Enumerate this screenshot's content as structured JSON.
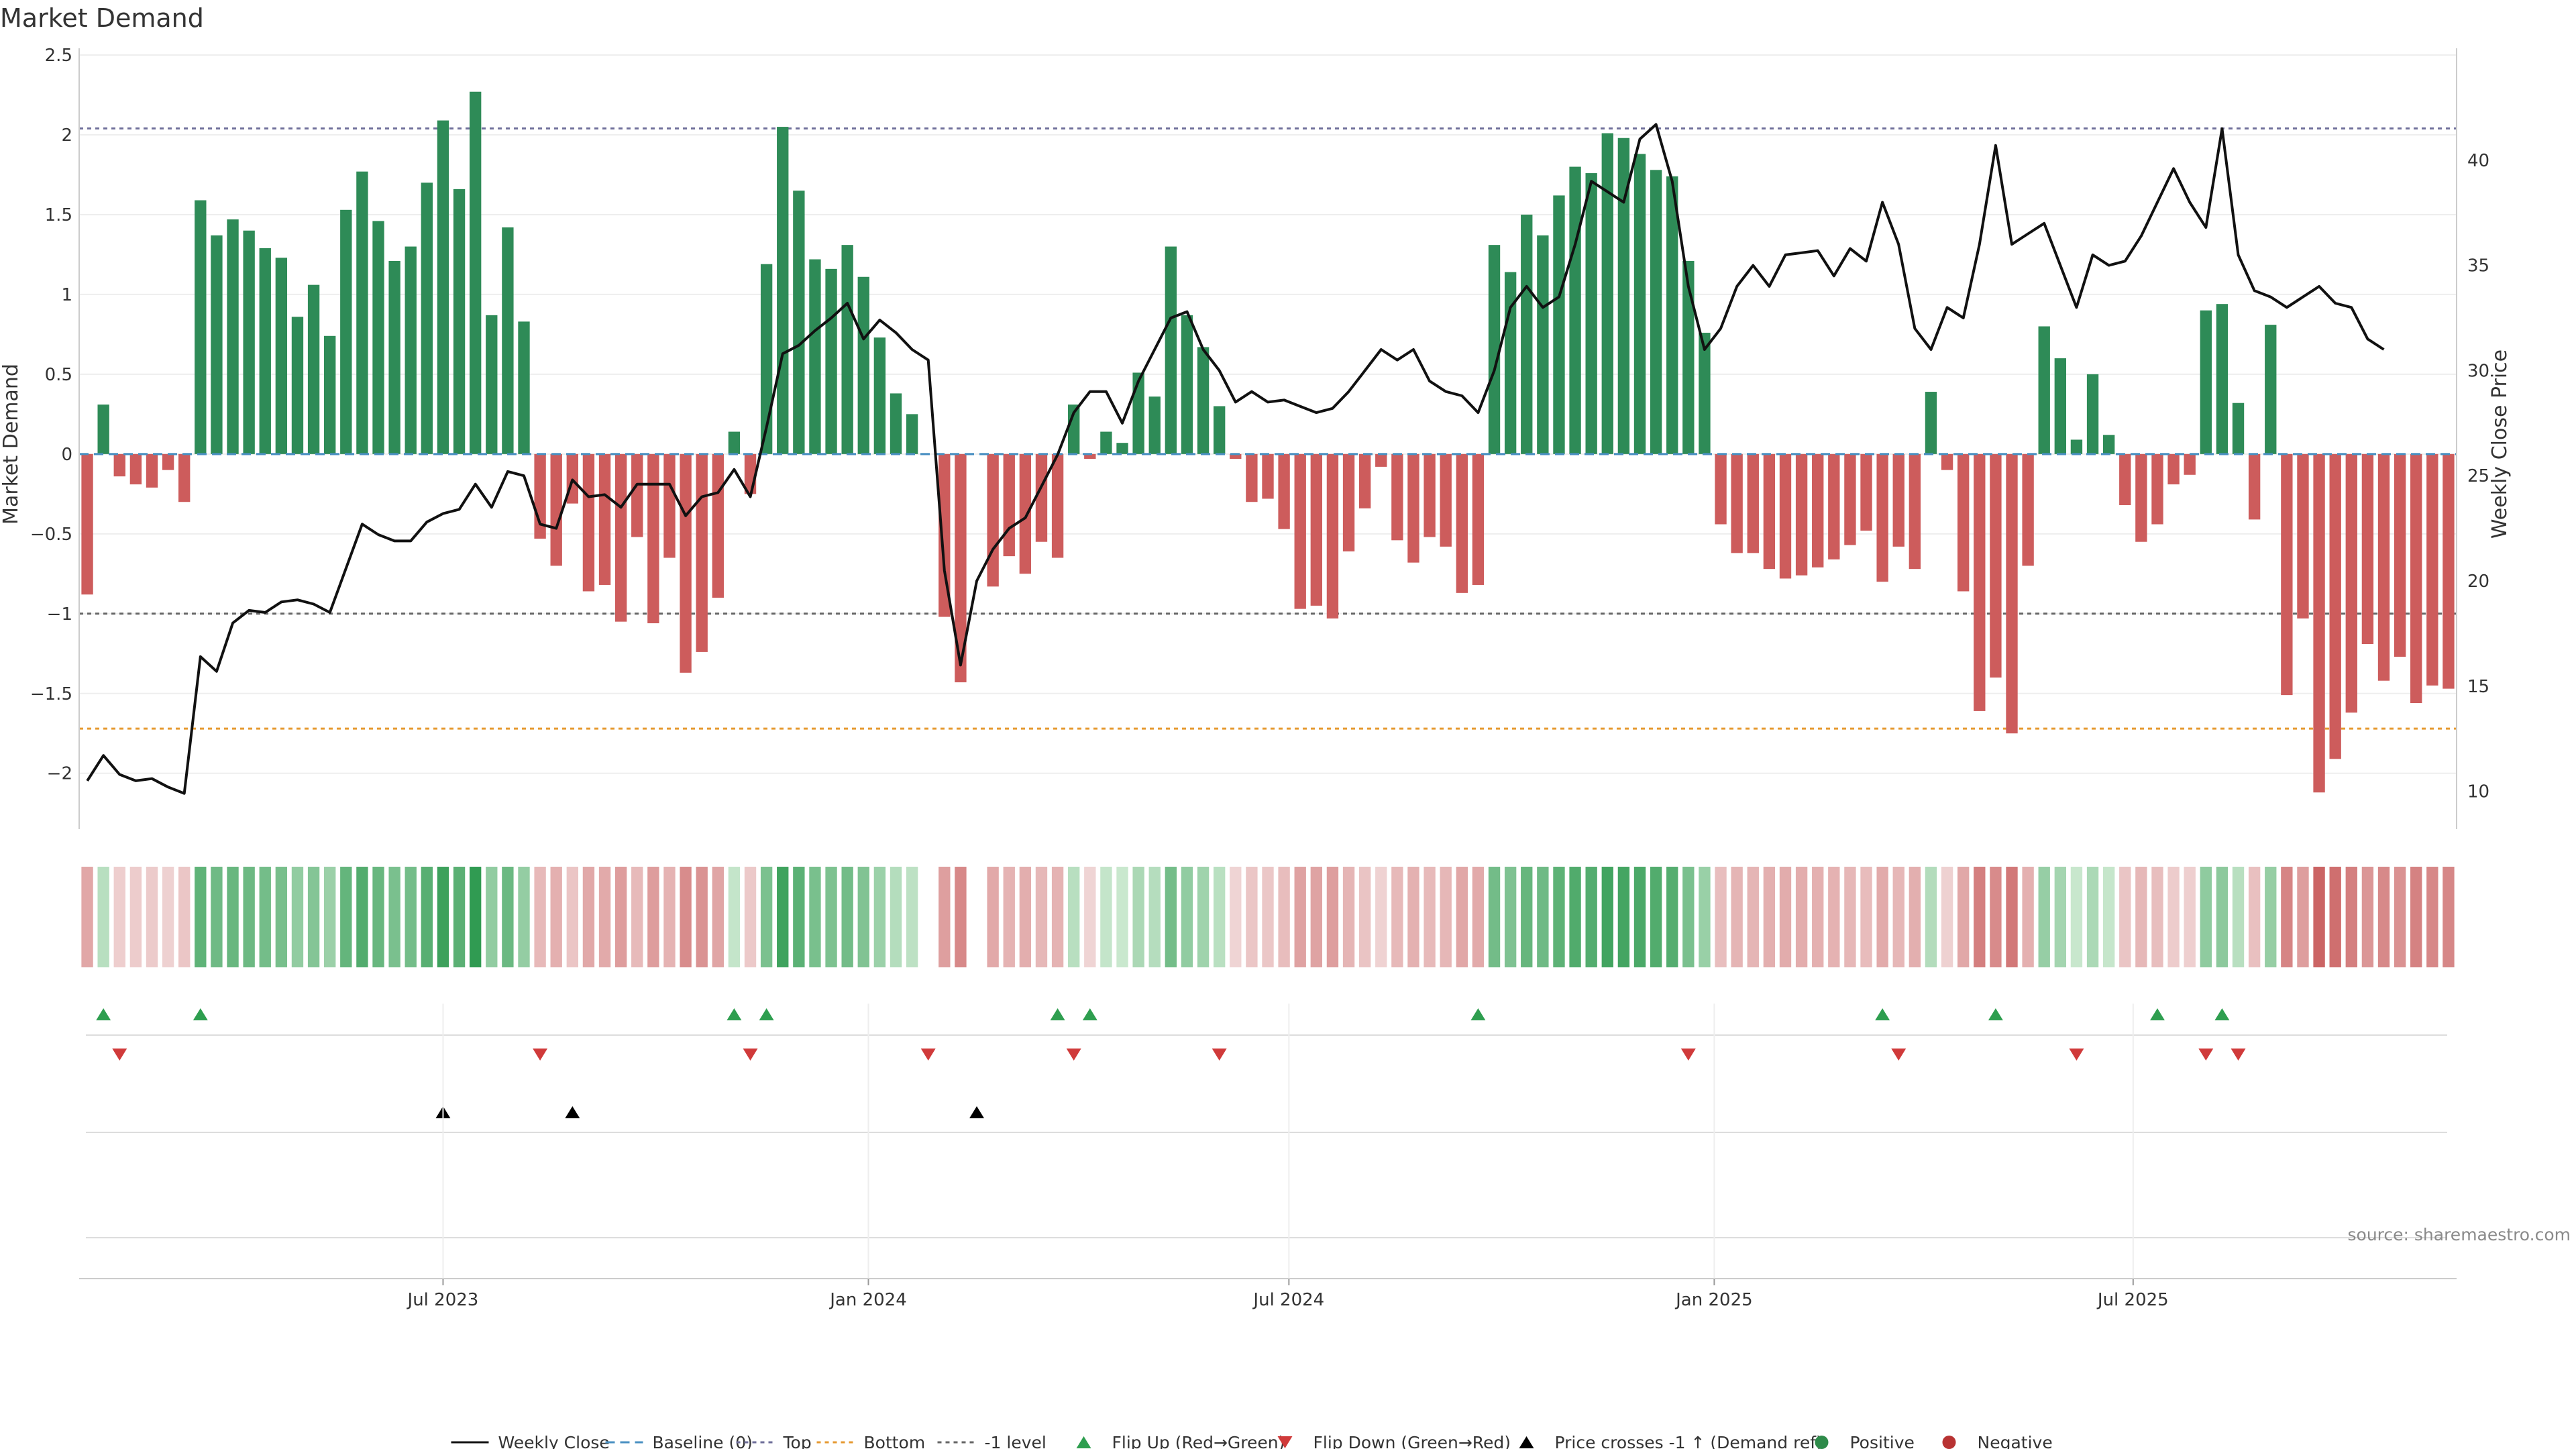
{
  "chart_data": {
    "type": "bar",
    "title": "Market Demand",
    "ylabel_left": "Market Demand",
    "ylabel_right": "Weekly Close Price",
    "ylim_left": [
      -2.35,
      2.5
    ],
    "ylim_right": [
      8.2,
      45.0
    ],
    "yticks_left": [
      2.5,
      2,
      1.5,
      1,
      0.5,
      0,
      -0.5,
      -1,
      -1.5,
      -2
    ],
    "ytick_labels_left": [
      "2.5",
      "2",
      "1.5",
      "1",
      "0.5",
      "0",
      "−0.5",
      "−1",
      "−1.5",
      "−2"
    ],
    "yticks_right": [
      40,
      35,
      30,
      25,
      20,
      15,
      10
    ],
    "ytick_labels_right": [
      "40",
      "35",
      "30",
      "25",
      "20",
      "15",
      "10"
    ],
    "x_dates": [
      "Jul 2023",
      "Jan 2024",
      "Jul 2024",
      "Jan 2025",
      "Jul 2025"
    ],
    "x_date_week_index": [
      22.0,
      48.3,
      74.3,
      100.6,
      126.5
    ],
    "levels": {
      "top": 2.04,
      "bottom": -1.72,
      "minus_one": -1.0,
      "baseline": 0
    },
    "demand": [
      -0.88,
      0.31,
      -0.14,
      -0.19,
      -0.21,
      -0.1,
      -0.3,
      1.59,
      1.37,
      1.47,
      1.4,
      1.29,
      1.23,
      0.86,
      1.06,
      0.74,
      1.53,
      1.77,
      1.46,
      1.21,
      1.3,
      1.7,
      2.09,
      1.66,
      2.27,
      0.87,
      1.42,
      0.83,
      -0.53,
      -0.7,
      -0.31,
      -0.86,
      -0.82,
      -1.05,
      -0.52,
      -1.06,
      -0.65,
      -1.37,
      -1.24,
      -0.9,
      0.14,
      -0.25,
      1.19,
      2.05,
      1.65,
      1.22,
      1.16,
      1.31,
      1.11,
      0.73,
      0.38,
      0.25,
      null,
      -1.02,
      -1.43,
      null,
      -0.83,
      -0.64,
      -0.75,
      -0.55,
      -0.65,
      0.31,
      -0.03,
      0.14,
      0.07,
      0.51,
      0.36,
      1.3,
      0.87,
      0.67,
      0.3,
      -0.03,
      -0.3,
      -0.28,
      -0.47,
      -0.97,
      -0.95,
      -1.03,
      -0.61,
      -0.34,
      -0.08,
      -0.54,
      -0.68,
      -0.52,
      -0.58,
      -0.87,
      -0.82,
      1.31,
      1.14,
      1.5,
      1.37,
      1.62,
      1.8,
      1.76,
      2.01,
      1.98,
      1.88,
      1.78,
      1.74,
      1.21,
      0.76,
      -0.44,
      -0.62,
      -0.62,
      -0.72,
      -0.78,
      -0.76,
      -0.71,
      -0.66,
      -0.57,
      -0.48,
      -0.8,
      -0.58,
      -0.72,
      0.39,
      -0.1,
      -0.86,
      -1.61,
      -1.4,
      -1.75,
      -0.7,
      0.8,
      0.6,
      0.09,
      0.5,
      0.12,
      -0.32,
      -0.55,
      -0.44,
      -0.19,
      -0.13,
      0.9,
      0.94,
      0.32,
      -0.41,
      0.81,
      -1.51,
      -1.03,
      -2.12,
      -1.91,
      -1.62,
      -1.19,
      -1.42,
      -1.27,
      -1.56,
      -1.45,
      -1.47
    ],
    "weekly_close": [
      10.5,
      11.7,
      10.8,
      10.5,
      10.6,
      10.2,
      9.9,
      16.4,
      15.7,
      18.0,
      18.6,
      18.5,
      19.0,
      19.1,
      18.9,
      18.5,
      20.6,
      22.7,
      22.2,
      21.9,
      21.9,
      22.8,
      23.2,
      23.4,
      24.6,
      23.5,
      25.2,
      25.0,
      22.7,
      22.5,
      24.8,
      24.0,
      24.1,
      23.5,
      24.6,
      24.6,
      24.6,
      23.1,
      24.0,
      24.2,
      25.3,
      24.0,
      27.3,
      30.8,
      31.2,
      31.9,
      32.5,
      33.2,
      31.5,
      32.4,
      31.8,
      31.0,
      30.5,
      20.5,
      16.0,
      20.0,
      21.5,
      22.5,
      23.0,
      24.5,
      26.0,
      28.0,
      29.0,
      29.0,
      27.5,
      29.5,
      31.0,
      32.5,
      32.8,
      31.0,
      30.0,
      28.5,
      29.0,
      28.5,
      28.6,
      28.3,
      28.0,
      28.2,
      29.0,
      30.0,
      31.0,
      30.5,
      31.0,
      29.5,
      29.0,
      28.8,
      28.0,
      30.0,
      33.0,
      34.0,
      33.0,
      33.5,
      36.0,
      39.0,
      38.5,
      38.0,
      41.0,
      41.7,
      39.0,
      34.0,
      31.0,
      32.0,
      34.0,
      35.0,
      34.0,
      35.5,
      35.6,
      35.7,
      34.5,
      35.8,
      35.2,
      38.0,
      36.0,
      32.0,
      31.0,
      33.0,
      32.5,
      36.0,
      40.7,
      36.0,
      36.5,
      37.0,
      35.0,
      33.0,
      35.5,
      35.0,
      35.2,
      36.4,
      38.0,
      39.6,
      38.0,
      36.8,
      41.5,
      35.5,
      33.8,
      33.5,
      33.0,
      33.5,
      34.0,
      33.2,
      33.0,
      31.5,
      31.0
    ],
    "flip_up_weeks": [
      1,
      7,
      40,
      42,
      60,
      62,
      86,
      111,
      118,
      128,
      132
    ],
    "flip_down_weeks": [
      2,
      28,
      41,
      52,
      61,
      70,
      99,
      112,
      123,
      131,
      133
    ],
    "price_cross_weeks": [
      22,
      30,
      55
    ],
    "legend": [
      {
        "key": "weekly_close",
        "label": "Weekly Close",
        "color": "#111111"
      },
      {
        "key": "baseline",
        "label": "Baseline (0)",
        "color": "#4a90c2"
      },
      {
        "key": "top",
        "label": "Top",
        "color": "#6f6f9a"
      },
      {
        "key": "bottom",
        "label": "Bottom",
        "color": "#e69a32"
      },
      {
        "key": "minus_one",
        "label": "-1 level",
        "color": "#666666"
      },
      {
        "key": "flip_up",
        "label": "Flip Up (Red→Green)",
        "color": "#2e9e4f"
      },
      {
        "key": "flip_down",
        "label": "Flip Down (Green→Red)",
        "color": "#d03a3a"
      },
      {
        "key": "price_cross",
        "label": "Price crosses -1 ↑ (Demand ref)",
        "color": "#000000"
      },
      {
        "key": "positive",
        "label": "Positive",
        "color": "#2e8b4a"
      },
      {
        "key": "negative",
        "label": "Negative",
        "color": "#b83232"
      }
    ],
    "source": "source: sharemaestro.com",
    "colors": {
      "bar_positive": "#2e8b57",
      "bar_negative": "#cd5c5c",
      "close_line": "#111111",
      "grid": "#eeeeee"
    }
  }
}
